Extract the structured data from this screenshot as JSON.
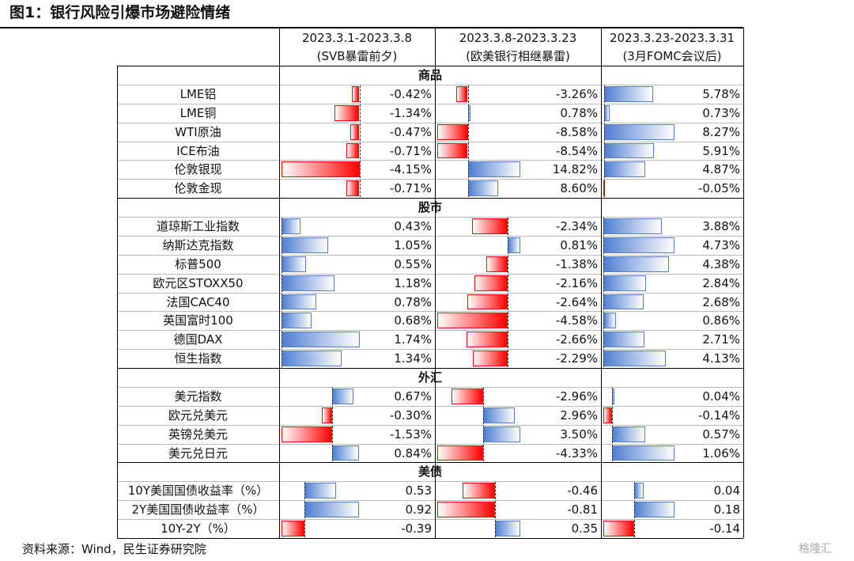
{
  "title": "图1：银行风险引爆市场避险情绪",
  "columns": [
    [
      "2023.3.1-2023.3.8",
      "(SVB暴雷前夕)"
    ],
    [
      "2023.3.8-2023.3.23",
      "(欧美银行相继暴雷)"
    ],
    [
      "2023.3.23-2023.3.31",
      "(3月FOMC会议后)"
    ]
  ],
  "sections": [
    {
      "name": "商品",
      "rows": [
        {
          "label": "LME铝",
          "cells": [
            "-0.42%",
            "-3.26%",
            "5.78%"
          ]
        },
        {
          "label": "LME铜",
          "cells": [
            "-1.34%",
            "0.78%",
            "0.73%"
          ]
        },
        {
          "label": "WTI原油",
          "cells": [
            "-0.47%",
            "-8.58%",
            "8.27%"
          ]
        },
        {
          "label": "ICE布油",
          "cells": [
            "-0.71%",
            "-8.54%",
            "5.91%"
          ]
        },
        {
          "label": "伦敦银现",
          "cells": [
            "-4.15%",
            "14.82%",
            "4.87%"
          ]
        },
        {
          "label": "伦敦金现",
          "cells": [
            "-0.71%",
            "8.60%",
            "-0.05%"
          ]
        }
      ]
    },
    {
      "name": "股市",
      "rows": [
        {
          "label": "道琼斯工业指数",
          "cells": [
            "0.43%",
            "-2.34%",
            "3.88%"
          ]
        },
        {
          "label": "纳斯达克指数",
          "cells": [
            "1.05%",
            "0.81%",
            "4.73%"
          ]
        },
        {
          "label": "标普500",
          "cells": [
            "0.55%",
            "-1.38%",
            "4.38%"
          ]
        },
        {
          "label": "欧元区STOXX50",
          "cells": [
            "1.18%",
            "-2.16%",
            "2.84%"
          ]
        },
        {
          "label": "法国CAC40",
          "cells": [
            "0.78%",
            "-2.64%",
            "2.68%"
          ]
        },
        {
          "label": "英国富时100",
          "cells": [
            "0.68%",
            "-4.58%",
            "0.86%"
          ]
        },
        {
          "label": "德国DAX",
          "cells": [
            "1.74%",
            "-2.66%",
            "2.71%"
          ]
        },
        {
          "label": "恒生指数",
          "cells": [
            "1.34%",
            "-2.29%",
            "4.13%"
          ]
        }
      ]
    },
    {
      "name": "外汇",
      "rows": [
        {
          "label": "美元指数",
          "cells": [
            "0.67%",
            "-2.96%",
            "0.04%"
          ]
        },
        {
          "label": "欧元兑美元",
          "cells": [
            "-0.30%",
            "2.96%",
            "-0.14%"
          ]
        },
        {
          "label": "英镑兑美元",
          "cells": [
            "-1.53%",
            "3.50%",
            "0.57%"
          ]
        },
        {
          "label": "美元兑日元",
          "cells": [
            "0.84%",
            "-4.33%",
            "1.06%"
          ]
        }
      ]
    },
    {
      "name": "美债",
      "rows": [
        {
          "label": "10Y美国国债收益率（%）",
          "cells": [
            "0.53",
            "-0.46",
            "0.04"
          ]
        },
        {
          "label": "2Y美国国债收益率（%）",
          "cells": [
            "0.92",
            "-0.81",
            "0.18"
          ]
        },
        {
          "label": "10Y-2Y（%）",
          "cells": [
            "-0.39",
            "0.35",
            "-0.14"
          ]
        }
      ]
    }
  ],
  "source": "资料来源：Wind，民生证券研究院",
  "watermark": "格隆汇"
}
